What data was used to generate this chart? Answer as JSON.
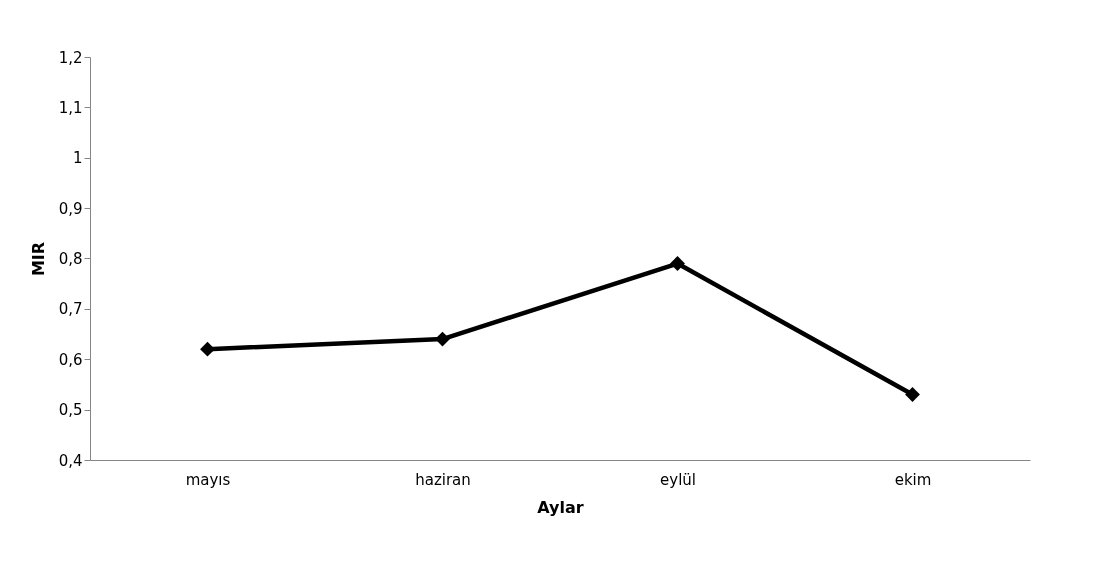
{
  "chart_data": {
    "type": "line",
    "xlabel": "Aylar",
    "ylabel": "MIR",
    "categories": [
      "mayıs",
      "haziran",
      "eylül",
      "ekim"
    ],
    "series": [
      {
        "color": "#000000",
        "values": [
          0.62,
          0.64,
          0.79,
          0.53
        ]
      }
    ],
    "ylim": [
      0.4,
      1.2
    ],
    "yticks": [
      {
        "value": 0.4,
        "label": "0,4"
      },
      {
        "value": 0.5,
        "label": "0,5"
      },
      {
        "value": 0.6,
        "label": "0,6"
      },
      {
        "value": 0.7,
        "label": "0,7"
      },
      {
        "value": 0.8,
        "label": "0,8"
      },
      {
        "value": 0.9,
        "label": "0,9"
      },
      {
        "value": 1,
        "label": "1"
      },
      {
        "value": 1.1,
        "label": "1,1"
      },
      {
        "value": 1.2,
        "label": "1,2"
      }
    ],
    "grid": false,
    "legend": false,
    "marker": "diamond",
    "line_style": "solid"
  }
}
